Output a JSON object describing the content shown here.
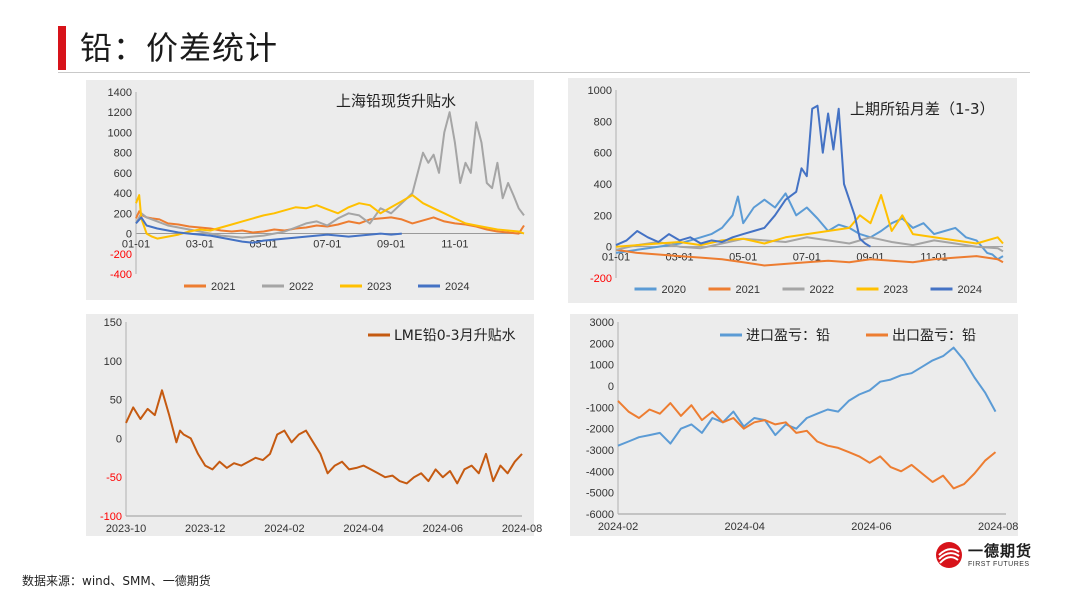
{
  "page": {
    "title": "铅：价差统计",
    "source": "数据来源：wind、SMM、一德期货",
    "logo_text": "一德期货",
    "logo_sub": "FIRST FUTURES",
    "accent": "#d7131a"
  },
  "chart_data": [
    {
      "type": "line",
      "title": "上海铅现货升贴水",
      "x_ticks": [
        "01-01",
        "03-01",
        "05-01",
        "07-01",
        "09-01",
        "11-01"
      ],
      "ylim": [
        -400,
        1400
      ],
      "y_ticks": [
        -400,
        -200,
        0,
        200,
        400,
        600,
        800,
        1000,
        1200,
        1400
      ],
      "legend_position": "bottom",
      "series": [
        {
          "name": "2021",
          "color": "#ed7d31",
          "x": [
            0,
            3,
            6,
            10,
            15,
            22,
            30,
            40,
            50,
            60,
            70,
            80,
            90,
            100,
            110,
            120,
            130,
            140,
            150,
            160,
            170,
            180,
            190,
            200,
            210,
            220,
            230,
            240,
            250,
            260,
            270,
            280,
            290,
            300,
            310,
            320,
            330,
            340,
            350,
            360,
            365
          ],
          "values": [
            150,
            220,
            180,
            160,
            150,
            140,
            100,
            90,
            70,
            60,
            50,
            30,
            20,
            30,
            10,
            20,
            40,
            30,
            50,
            60,
            80,
            70,
            90,
            120,
            100,
            140,
            150,
            160,
            140,
            100,
            130,
            160,
            120,
            100,
            90,
            70,
            40,
            20,
            10,
            0,
            80
          ]
        },
        {
          "name": "2022",
          "color": "#a5a5a5",
          "x": [
            0,
            5,
            10,
            20,
            30,
            40,
            50,
            60,
            70,
            80,
            90,
            100,
            110,
            120,
            130,
            140,
            150,
            160,
            170,
            180,
            190,
            200,
            210,
            220,
            230,
            240,
            250,
            260,
            270,
            275,
            280,
            285,
            290,
            295,
            300,
            305,
            310,
            315,
            320,
            325,
            330,
            335,
            340,
            345,
            350,
            355,
            360,
            365
          ],
          "values": [
            100,
            200,
            160,
            120,
            80,
            60,
            40,
            20,
            0,
            -20,
            -30,
            -40,
            -30,
            -20,
            0,
            20,
            60,
            100,
            120,
            80,
            150,
            200,
            180,
            100,
            250,
            200,
            300,
            400,
            800,
            700,
            780,
            600,
            1000,
            1200,
            900,
            500,
            700,
            600,
            1100,
            900,
            500,
            450,
            700,
            350,
            500,
            380,
            250,
            180
          ]
        },
        {
          "name": "2023",
          "color": "#ffc000",
          "x": [
            0,
            3,
            5,
            8,
            10,
            15,
            20,
            30,
            40,
            50,
            60,
            70,
            80,
            90,
            100,
            110,
            120,
            130,
            140,
            150,
            160,
            170,
            180,
            190,
            200,
            210,
            220,
            230,
            240,
            250,
            260,
            270,
            280,
            290,
            300,
            310,
            320,
            330,
            340,
            350,
            360,
            365
          ],
          "values": [
            300,
            380,
            150,
            60,
            0,
            -30,
            -50,
            -30,
            -10,
            20,
            40,
            30,
            60,
            90,
            120,
            150,
            180,
            200,
            230,
            260,
            250,
            280,
            240,
            200,
            260,
            300,
            280,
            200,
            260,
            320,
            380,
            300,
            250,
            200,
            150,
            100,
            80,
            60,
            40,
            30,
            20,
            0
          ]
        },
        {
          "name": "2024",
          "color": "#4472c4",
          "x": [
            0,
            5,
            10,
            20,
            30,
            40,
            50,
            60,
            70,
            80,
            90,
            100,
            110,
            120,
            130,
            140,
            150,
            160,
            170,
            180,
            190,
            200,
            210,
            220,
            230,
            240,
            250
          ],
          "values": [
            100,
            160,
            80,
            50,
            30,
            10,
            0,
            -10,
            -20,
            -40,
            -60,
            -80,
            -90,
            -70,
            -60,
            -50,
            -40,
            -30,
            -20,
            -10,
            -20,
            -30,
            -20,
            -10,
            0,
            -10,
            0
          ]
        }
      ]
    },
    {
      "type": "line",
      "title": "上期所铅月差（1-3）",
      "x_ticks": [
        "01-01",
        "03-01",
        "05-01",
        "07-01",
        "09-01",
        "11-01"
      ],
      "ylim": [
        -200,
        1000
      ],
      "y_ticks": [
        -200,
        0,
        200,
        400,
        600,
        800,
        1000
      ],
      "legend_position": "bottom",
      "series": [
        {
          "name": "2020",
          "color": "#5b9bd5",
          "x": [
            0,
            10,
            20,
            30,
            40,
            50,
            60,
            70,
            80,
            90,
            100,
            110,
            115,
            120,
            130,
            140,
            150,
            160,
            170,
            180,
            190,
            200,
            210,
            220,
            230,
            240,
            250,
            260,
            270,
            280,
            290,
            300,
            310,
            320,
            330,
            340,
            350,
            355,
            360,
            365
          ],
          "values": [
            -40,
            -30,
            -20,
            -10,
            0,
            10,
            20,
            40,
            60,
            80,
            120,
            200,
            320,
            150,
            250,
            300,
            250,
            340,
            200,
            250,
            180,
            100,
            140,
            120,
            80,
            60,
            100,
            150,
            180,
            120,
            150,
            80,
            100,
            120,
            60,
            40,
            -40,
            -50,
            -80,
            -60
          ]
        },
        {
          "name": "2021",
          "color": "#ed7d31",
          "x": [
            0,
            20,
            40,
            60,
            80,
            100,
            120,
            140,
            160,
            180,
            200,
            220,
            240,
            260,
            280,
            300,
            320,
            340,
            360,
            365
          ],
          "values": [
            -20,
            -40,
            -50,
            -60,
            -70,
            -80,
            -100,
            -120,
            -110,
            -100,
            -90,
            -100,
            -80,
            -90,
            -100,
            -80,
            -70,
            -60,
            -80,
            -100
          ]
        },
        {
          "name": "2022",
          "color": "#a5a5a5",
          "x": [
            0,
            20,
            40,
            60,
            80,
            100,
            120,
            140,
            160,
            180,
            200,
            220,
            240,
            260,
            280,
            300,
            320,
            340,
            360,
            365
          ],
          "values": [
            -20,
            10,
            30,
            0,
            -10,
            20,
            50,
            40,
            30,
            60,
            40,
            20,
            60,
            30,
            10,
            40,
            20,
            0,
            -10,
            -30
          ]
        },
        {
          "name": "2023",
          "color": "#ffc000",
          "x": [
            0,
            20,
            40,
            60,
            80,
            100,
            120,
            140,
            160,
            180,
            200,
            220,
            230,
            240,
            250,
            260,
            270,
            280,
            300,
            320,
            340,
            360,
            365
          ],
          "values": [
            0,
            10,
            20,
            30,
            10,
            40,
            50,
            20,
            60,
            80,
            100,
            120,
            200,
            150,
            330,
            100,
            200,
            80,
            60,
            40,
            20,
            60,
            20
          ]
        },
        {
          "name": "2024",
          "color": "#4472c4",
          "x": [
            0,
            10,
            20,
            30,
            40,
            50,
            60,
            70,
            80,
            90,
            100,
            110,
            120,
            130,
            140,
            150,
            160,
            170,
            175,
            180,
            185,
            190,
            195,
            200,
            205,
            210,
            215,
            220,
            225,
            230,
            235,
            240
          ],
          "values": [
            10,
            40,
            100,
            60,
            30,
            80,
            40,
            60,
            20,
            40,
            30,
            60,
            80,
            100,
            120,
            200,
            300,
            350,
            500,
            450,
            880,
            900,
            600,
            850,
            620,
            880,
            400,
            300,
            200,
            50,
            20,
            0
          ]
        }
      ]
    },
    {
      "type": "line",
      "title": "LME铅0-3月升贴水",
      "x_ticks": [
        "2023-10",
        "2023-12",
        "2024-02",
        "2024-04",
        "2024-06",
        "2024-08"
      ],
      "x_range": [
        0,
        11
      ],
      "ylim": [
        -100,
        150
      ],
      "y_ticks": [
        -100,
        -50,
        0,
        50,
        100,
        150
      ],
      "legend_position": "top-right",
      "series": [
        {
          "name": "LME铅0-3月升贴水",
          "color": "#c55a11",
          "x": [
            0,
            0.2,
            0.4,
            0.6,
            0.8,
            1.0,
            1.2,
            1.4,
            1.5,
            1.6,
            1.8,
            2.0,
            2.2,
            2.4,
            2.6,
            2.8,
            3.0,
            3.2,
            3.4,
            3.6,
            3.8,
            4.0,
            4.2,
            4.4,
            4.6,
            4.8,
            5.0,
            5.2,
            5.4,
            5.6,
            5.8,
            6.0,
            6.2,
            6.4,
            6.6,
            6.8,
            7.0,
            7.2,
            7.4,
            7.6,
            7.8,
            8.0,
            8.2,
            8.4,
            8.6,
            8.8,
            9.0,
            9.2,
            9.4,
            9.6,
            9.8,
            10.0,
            10.2,
            10.4,
            10.6,
            10.8,
            11.0
          ],
          "values": [
            20,
            40,
            25,
            38,
            30,
            62,
            30,
            -5,
            10,
            5,
            0,
            -20,
            -35,
            -40,
            -30,
            -38,
            -32,
            -35,
            -30,
            -25,
            -28,
            -20,
            5,
            10,
            -5,
            5,
            10,
            -5,
            -20,
            -45,
            -35,
            -30,
            -40,
            -38,
            -35,
            -40,
            -45,
            -50,
            -48,
            -55,
            -58,
            -50,
            -45,
            -55,
            -40,
            -50,
            -42,
            -58,
            -40,
            -35,
            -45,
            -20,
            -55,
            -35,
            -45,
            -30,
            -20
          ]
        }
      ]
    },
    {
      "type": "line",
      "title": "",
      "x_ticks": [
        "2024-02",
        "2024-04",
        "2024-06",
        "2024-08"
      ],
      "x_range": [
        0,
        7.4
      ],
      "ylim": [
        -6000,
        3000
      ],
      "y_ticks": [
        -6000,
        -5000,
        -4000,
        -3000,
        -2000,
        -1000,
        0,
        1000,
        2000,
        3000
      ],
      "legend_position": "top",
      "series": [
        {
          "name": "进口盈亏：铅",
          "color": "#5b9bd5",
          "x": [
            0,
            0.2,
            0.4,
            0.6,
            0.8,
            1.0,
            1.2,
            1.4,
            1.6,
            1.8,
            2.0,
            2.2,
            2.4,
            2.6,
            2.8,
            3.0,
            3.2,
            3.4,
            3.6,
            3.8,
            4.0,
            4.2,
            4.4,
            4.6,
            4.8,
            5.0,
            5.2,
            5.4,
            5.6,
            5.8,
            6.0,
            6.2,
            6.4,
            6.6,
            6.8,
            7.0,
            7.2
          ],
          "values": [
            -2800,
            -2600,
            -2400,
            -2300,
            -2200,
            -2700,
            -2000,
            -1800,
            -2200,
            -1500,
            -1700,
            -1200,
            -1900,
            -1500,
            -1600,
            -2300,
            -1800,
            -2000,
            -1500,
            -1300,
            -1100,
            -1200,
            -700,
            -400,
            -200,
            200,
            300,
            500,
            600,
            900,
            1200,
            1400,
            1800,
            1200,
            400,
            -300,
            -1200
          ]
        },
        {
          "name": "出口盈亏：铅",
          "color": "#ed7d31",
          "x": [
            0,
            0.2,
            0.4,
            0.6,
            0.8,
            1.0,
            1.2,
            1.4,
            1.6,
            1.8,
            2.0,
            2.2,
            2.4,
            2.6,
            2.8,
            3.0,
            3.2,
            3.4,
            3.6,
            3.8,
            4.0,
            4.2,
            4.4,
            4.6,
            4.8,
            5.0,
            5.2,
            5.4,
            5.6,
            5.8,
            6.0,
            6.2,
            6.4,
            6.6,
            6.8,
            7.0,
            7.2
          ],
          "values": [
            -700,
            -1200,
            -1500,
            -1100,
            -1300,
            -800,
            -1400,
            -900,
            -1600,
            -1200,
            -1700,
            -1500,
            -2000,
            -1700,
            -1600,
            -1800,
            -1700,
            -2200,
            -2100,
            -2600,
            -2800,
            -2900,
            -3100,
            -3300,
            -3600,
            -3300,
            -3800,
            -4000,
            -3700,
            -4100,
            -4500,
            -4200,
            -4800,
            -4600,
            -4100,
            -3500,
            -3100
          ]
        }
      ]
    }
  ]
}
